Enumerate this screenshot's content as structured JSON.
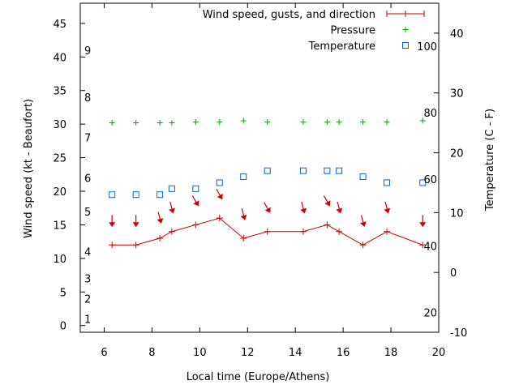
{
  "chart_data": {
    "type": "line",
    "xlabel": "Local time (Europe/Athens)",
    "ylabel": "Wind speed (kt - Beaufort)",
    "y2label": "Temperature (C - F)",
    "xlim": [
      5,
      20
    ],
    "ylim": [
      -1,
      48
    ],
    "y2lim": [
      -10,
      45
    ],
    "x_ticks": [
      6,
      8,
      10,
      12,
      14,
      16,
      18,
      20
    ],
    "y_ticks": [
      0,
      5,
      10,
      15,
      20,
      25,
      30,
      35,
      40,
      45
    ],
    "y2_ticks": [
      -10,
      0,
      10,
      20,
      30,
      40
    ],
    "beaufort_labels": [
      {
        "label": "1",
        "kt": 1
      },
      {
        "label": "2",
        "kt": 4
      },
      {
        "label": "3",
        "kt": 7
      },
      {
        "label": "4",
        "kt": 11
      },
      {
        "label": "5",
        "kt": 17
      },
      {
        "label": "6",
        "kt": 22
      },
      {
        "label": "7",
        "kt": 28
      },
      {
        "label": "8",
        "kt": 34
      },
      {
        "label": "9",
        "kt": 41
      }
    ],
    "fahrenheit_labels": [
      {
        "label": "20",
        "c": -6.7
      },
      {
        "label": "40",
        "c": 4.4
      },
      {
        "label": "60",
        "c": 15.6
      },
      {
        "label": "80",
        "c": 26.7
      },
      {
        "label": "100",
        "c": 37.8
      }
    ],
    "legend": [
      {
        "label": "Wind speed, gusts, and direction",
        "color": "#cc0000",
        "marker": "line-plus"
      },
      {
        "label": "Pressure",
        "color": "#00aa00",
        "marker": "plus"
      },
      {
        "label": "Temperature",
        "color": "#0066cc",
        "marker": "square"
      }
    ],
    "series": [
      {
        "name": "Wind speed, gusts, and direction",
        "color": "#cc0000",
        "x": [
          6.33,
          7.33,
          8.33,
          8.83,
          9.83,
          10.83,
          11.83,
          12.83,
          14.33,
          15.33,
          15.83,
          16.83,
          17.83,
          19.33
        ],
        "values": [
          12,
          12,
          13,
          14,
          15,
          16,
          13,
          14,
          14,
          15,
          14,
          12,
          14,
          12
        ],
        "direction_y": [
          15.5,
          15.5,
          16,
          17.5,
          18.5,
          19.5,
          16.5,
          17.5,
          17.5,
          18.5,
          17.5,
          15.5,
          17.5,
          15.5
        ],
        "direction_deg": [
          0,
          0,
          345,
          345,
          330,
          330,
          345,
          330,
          345,
          330,
          345,
          345,
          345,
          0
        ]
      },
      {
        "name": "Pressure",
        "color": "#00aa00",
        "x": [
          6.33,
          7.33,
          8.33,
          8.83,
          9.83,
          10.83,
          11.83,
          12.83,
          14.33,
          15.33,
          15.83,
          16.83,
          17.83,
          19.33
        ],
        "values": [
          30.2,
          30.2,
          30.2,
          30.2,
          30.3,
          30.3,
          30.5,
          30.3,
          30.3,
          30.3,
          30.3,
          30.3,
          30.3,
          30.5
        ]
      },
      {
        "name": "Temperature",
        "color": "#0066cc",
        "axis": "y2",
        "x": [
          6.33,
          7.33,
          8.33,
          8.83,
          9.83,
          10.83,
          11.83,
          12.83,
          14.33,
          15.33,
          15.83,
          16.83,
          17.83,
          19.33
        ],
        "values": [
          13,
          13,
          13,
          14,
          14,
          15,
          16,
          17,
          17,
          17,
          17,
          16,
          15,
          15
        ]
      }
    ]
  }
}
